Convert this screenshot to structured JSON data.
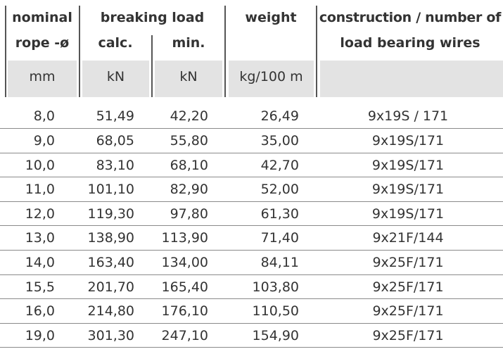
{
  "table": {
    "headers": {
      "nominal_line1": "nominal",
      "nominal_line2": "rope -ø",
      "breaking_load": "breaking load",
      "calc": "calc.",
      "min": "min.",
      "weight": "weight",
      "construction_line1": "construction / number of",
      "construction_line2": "load bearing wires"
    },
    "units": {
      "diameter": "mm",
      "calc": "kN",
      "min": "kN",
      "weight": "kg/100 m",
      "construction": ""
    },
    "rows": [
      {
        "diameter": "8,0",
        "calc": "51,49",
        "min": "42,20",
        "weight": "26,49",
        "construction": "9x19S / 171"
      },
      {
        "diameter": "9,0",
        "calc": "68,05",
        "min": "55,80",
        "weight": "35,00",
        "construction": "9x19S/171"
      },
      {
        "diameter": "10,0",
        "calc": "83,10",
        "min": "68,10",
        "weight": "42,70",
        "construction": "9x19S/171"
      },
      {
        "diameter": "11,0",
        "calc": "101,10",
        "min": "82,90",
        "weight": "52,00",
        "construction": "9x19S/171"
      },
      {
        "diameter": "12,0",
        "calc": "119,30",
        "min": "97,80",
        "weight": "61,30",
        "construction": "9x19S/171"
      },
      {
        "diameter": "13,0",
        "calc": "138,90",
        "min": "113,90",
        "weight": "71,40",
        "construction": "9x21F/144"
      },
      {
        "diameter": "14,0",
        "calc": "163,40",
        "min": "134,00",
        "weight": "84,11",
        "construction": "9x25F/171"
      },
      {
        "diameter": "15,5",
        "calc": "201,70",
        "min": "165,40",
        "weight": "103,80",
        "construction": "9x25F/171"
      },
      {
        "diameter": "16,0",
        "calc": "214,80",
        "min": "176,10",
        "weight": "110,50",
        "construction": "9x25F/171"
      },
      {
        "diameter": "19,0",
        "calc": "301,30",
        "min": "247,10",
        "weight": "154,90",
        "construction": "9x25F/171"
      }
    ]
  }
}
